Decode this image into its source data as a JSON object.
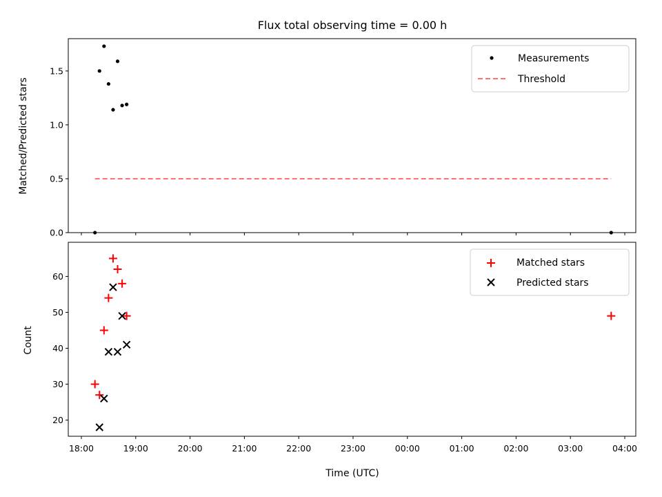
{
  "chart_data": [
    {
      "type": "scatter",
      "title": "Flux total observing time = 0.00 h",
      "xlabel": "",
      "ylabel": "Matched/Predicted stars",
      "xlim": [
        "18:00",
        "04:00"
      ],
      "ylim": [
        0,
        1.8
      ],
      "yticks": [
        "0.0",
        "0.5",
        "1.0",
        "1.5"
      ],
      "grid": false,
      "legend_position": "top-right",
      "series": [
        {
          "name": "Measurements",
          "marker": "dot",
          "color": "#000000",
          "points": [
            [
              "18:15",
              0.0
            ],
            [
              "18:20",
              1.5
            ],
            [
              "18:25",
              1.73
            ],
            [
              "18:30",
              1.38
            ],
            [
              "18:35",
              1.14
            ],
            [
              "18:40",
              1.59
            ],
            [
              "18:45",
              1.18
            ],
            [
              "18:50",
              1.19
            ],
            [
              "03:45",
              0.0
            ]
          ]
        },
        {
          "name": "Threshold",
          "style": "dashed",
          "color": "#ff7070",
          "points": [
            [
              "18:15",
              0.5
            ],
            [
              "03:45",
              0.5
            ]
          ]
        }
      ]
    },
    {
      "type": "scatter",
      "title": "",
      "xlabel": "Time (UTC)",
      "ylabel": "Count",
      "xlim": [
        "18:00",
        "04:00"
      ],
      "xticks": [
        "18:00",
        "19:00",
        "20:00",
        "21:00",
        "22:00",
        "23:00",
        "00:00",
        "01:00",
        "02:00",
        "03:00",
        "04:00"
      ],
      "ylim": [
        15.5,
        69.5
      ],
      "yticks": [
        "20",
        "30",
        "40",
        "50",
        "60"
      ],
      "grid": false,
      "legend_position": "top-right",
      "series": [
        {
          "name": "Matched stars",
          "marker": "plus",
          "color": "#ff0000",
          "points": [
            [
              "18:15",
              30
            ],
            [
              "18:20",
              27
            ],
            [
              "18:25",
              45
            ],
            [
              "18:30",
              54
            ],
            [
              "18:35",
              65
            ],
            [
              "18:40",
              62
            ],
            [
              "18:45",
              58
            ],
            [
              "18:50",
              49
            ],
            [
              "03:45",
              49
            ]
          ]
        },
        {
          "name": "Predicted stars",
          "marker": "x",
          "color": "#000000",
          "points": [
            [
              "18:20",
              18
            ],
            [
              "18:25",
              26
            ],
            [
              "18:30",
              39
            ],
            [
              "18:35",
              57
            ],
            [
              "18:40",
              39
            ],
            [
              "18:45",
              49
            ],
            [
              "18:50",
              41
            ]
          ]
        }
      ]
    }
  ]
}
